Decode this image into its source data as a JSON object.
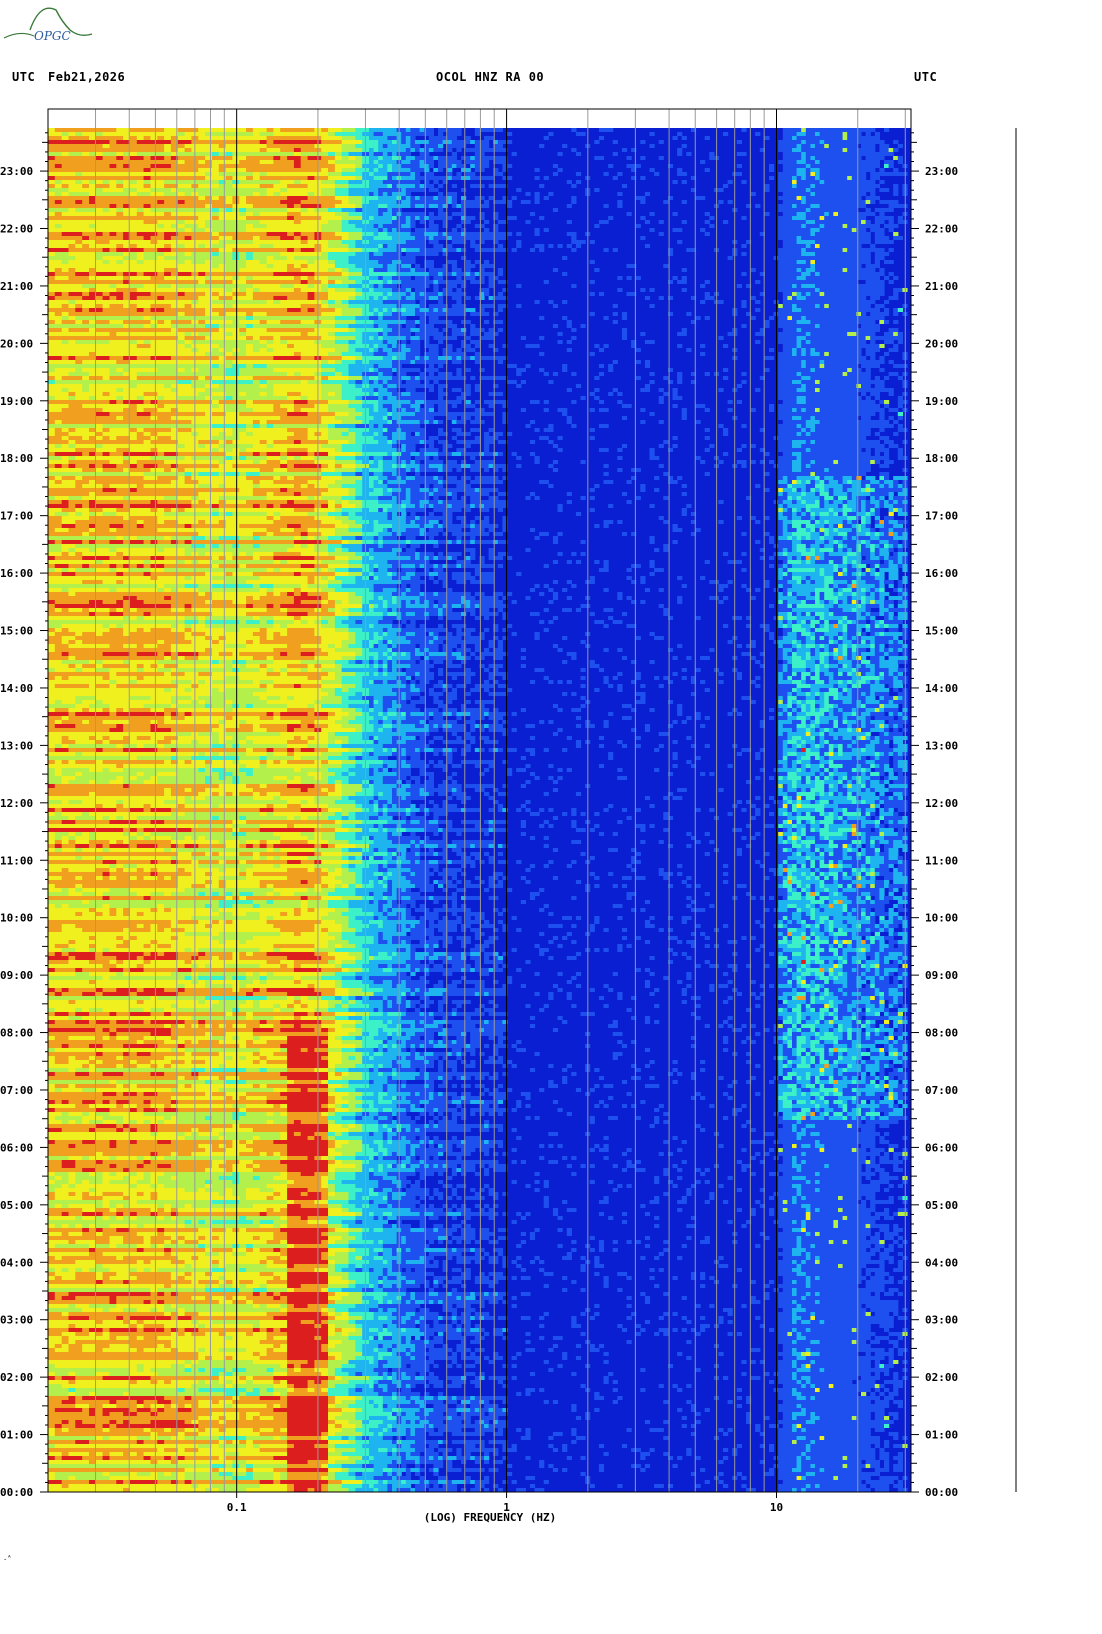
{
  "header": {
    "logo_text": "OPGC",
    "left_label": "UTC",
    "date": "Feb21,2026",
    "station": "OCOL HNZ RA 00",
    "right_label": "UTC"
  },
  "chart_data": {
    "type": "heatmap",
    "title": "OCOL HNZ RA 00",
    "xlabel": "(LOG) FREQUENCY (HZ)",
    "ylabel": "UTC",
    "x_scale": "log",
    "xlim": [
      0.02,
      31.5
    ],
    "ylim_hours": [
      0,
      23.75
    ],
    "x_tick_labels": [
      {
        "value": 0.1,
        "label": "0.1"
      },
      {
        "value": 1,
        "label": "1"
      },
      {
        "value": 10,
        "label": "10"
      }
    ],
    "y_tick_labels": [
      {
        "hour": 0,
        "label": "00:00"
      },
      {
        "hour": 1,
        "label": "01:00"
      },
      {
        "hour": 2,
        "label": "02:00"
      },
      {
        "hour": 3,
        "label": "03:00"
      },
      {
        "hour": 4,
        "label": "04:00"
      },
      {
        "hour": 5,
        "label": "05:00"
      },
      {
        "hour": 6,
        "label": "06:00"
      },
      {
        "hour": 7,
        "label": "07:00"
      },
      {
        "hour": 8,
        "label": "08:00"
      },
      {
        "hour": 9,
        "label": "09:00"
      },
      {
        "hour": 10,
        "label": "10:00"
      },
      {
        "hour": 11,
        "label": "11:00"
      },
      {
        "hour": 12,
        "label": "12:00"
      },
      {
        "hour": 13,
        "label": "13:00"
      },
      {
        "hour": 14,
        "label": "14:00"
      },
      {
        "hour": 15,
        "label": "15:00"
      },
      {
        "hour": 16,
        "label": "16:00"
      },
      {
        "hour": 17,
        "label": "17:00"
      },
      {
        "hour": 18,
        "label": "18:00"
      },
      {
        "hour": 19,
        "label": "19:00"
      },
      {
        "hour": 20,
        "label": "20:00"
      },
      {
        "hour": 21,
        "label": "21:00"
      },
      {
        "hour": 22,
        "label": "22:00"
      },
      {
        "hour": 23,
        "label": "23:00"
      }
    ],
    "color_scale": [
      "#0a1ed2",
      "#1e50f0",
      "#1eb4f0",
      "#3cf0c8",
      "#b4f04b",
      "#f0f01e",
      "#f0a01e",
      "#dc1e1e"
    ],
    "power_profile": {
      "note_free": true,
      "frequency_hz": [
        0.02,
        0.05,
        0.1,
        0.17,
        0.2,
        0.3,
        0.5,
        1,
        10,
        12,
        20,
        31.5
      ],
      "relative_level": [
        0.7,
        0.72,
        0.6,
        0.75,
        0.7,
        0.35,
        0.15,
        0.08,
        0.08,
        0.2,
        0.12,
        0.05
      ]
    }
  }
}
